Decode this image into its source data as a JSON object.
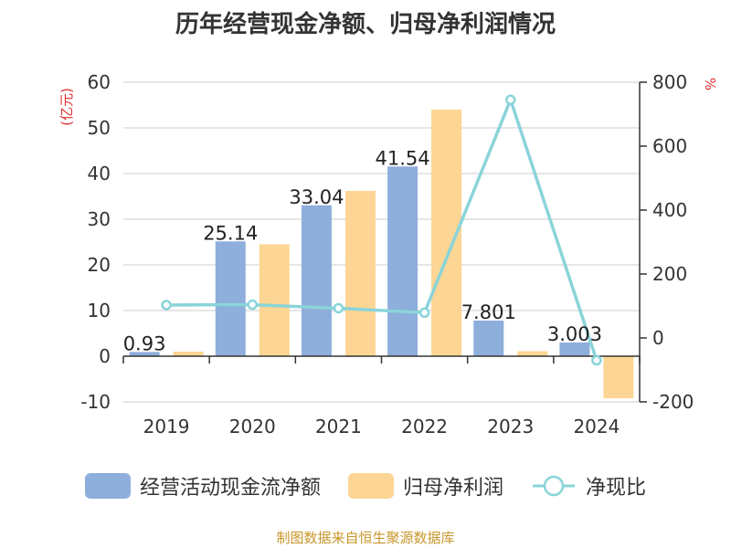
{
  "colors": {
    "cash": "#8eaedb",
    "profit": "#fdd594",
    "ratio": "#8ad4d9",
    "unit": "#e03030",
    "source": "#c8962a"
  },
  "chart_data": {
    "type": "bar",
    "title": "历年经营现金净额、归母净利润情况",
    "categories": [
      "2019",
      "2020",
      "2021",
      "2022",
      "2023",
      "2024"
    ],
    "series": [
      {
        "name": "经营活动现金流净额",
        "axis": "left",
        "values": [
          0.93,
          25.14,
          33.04,
          41.54,
          7.801,
          3.003
        ],
        "labels": [
          "0.93",
          "25.14",
          "33.04",
          "41.54",
          "7.801",
          "3.003"
        ]
      },
      {
        "name": "归母净利润",
        "axis": "left",
        "values": [
          1.0,
          24.5,
          36.2,
          54.0,
          1.1,
          -9.2
        ]
      },
      {
        "name": "净现比",
        "axis": "right",
        "type": "line",
        "values": [
          103,
          104,
          93,
          79,
          745,
          -70
        ]
      }
    ],
    "left_axis": {
      "unit_label": "(亿元)",
      "ylim": [
        -10,
        60
      ],
      "ticks": [
        -10,
        0,
        10,
        20,
        30,
        40,
        50,
        60
      ]
    },
    "right_axis": {
      "unit_label": "%",
      "ylim": [
        -200,
        800
      ],
      "ticks": [
        -200,
        0,
        200,
        400,
        600,
        800
      ]
    }
  },
  "legend": {
    "cash": "经营活动现金流净额",
    "profit": "归母净利润",
    "ratio": "净现比"
  },
  "source": "制图数据来自恒生聚源数据库"
}
